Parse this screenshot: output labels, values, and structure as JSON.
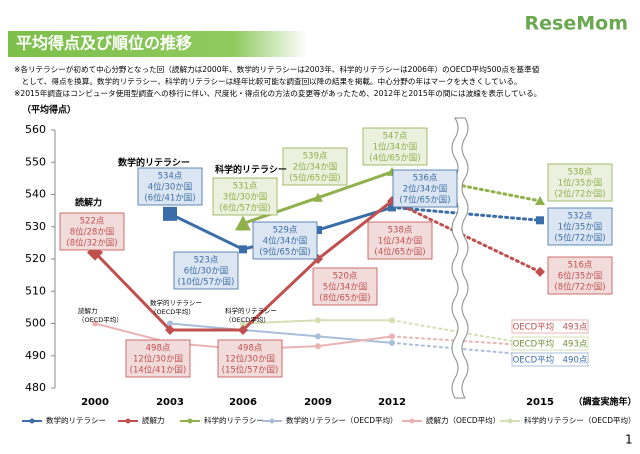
{
  "header": {
    "title": "平均得点及び順位の推移",
    "logo": "ReseMom",
    "notes": [
      "※各リテラシーが初めて中心分野となった回（読解力は2000年、数学的リテラシーは2003年、科学的リテラシーは2006年）のOECD平均500点を基準値",
      "　として、得点を換算。数学的リテラシー、科学的リテラシーは経年比較可能な調査回以降の結果を掲載。中心分野の年はマークを大きくしている。",
      "※2015年調査はコンピュータ使用型調査への移行に伴い、尺度化・得点化の方法の変更等があったため、2012年と2015年の間には波線を表示している。"
    ]
  },
  "page_number": 1,
  "chart_data": {
    "type": "line",
    "y_label": "（平均得点）",
    "x_label": "（調査実施年）",
    "categories": [
      "2000",
      "2003",
      "2006",
      "2009",
      "2012",
      "2015"
    ],
    "ylim": [
      480,
      560
    ],
    "yticks": [
      480,
      490,
      500,
      510,
      520,
      530,
      540,
      550,
      560
    ],
    "series": [
      {
        "name": "数学的リテラシー",
        "color": "#3a6ea8",
        "marker": "square",
        "values": [
          null,
          534,
          523,
          529,
          536,
          532
        ],
        "value_labels": [
          null,
          "534点",
          "523点",
          "529点",
          "536点",
          "532点"
        ],
        "ranks": [
          null,
          [
            "4位/30か国",
            "(6位/41か国)"
          ],
          [
            "6位/30か国",
            "(10位/57か国)"
          ],
          [
            "4位/34か国",
            "(9位/65か国)"
          ],
          [
            "2位/34か国",
            "(7位/65か国)"
          ],
          [
            "1位/35か国",
            "(5位/72か国)"
          ]
        ]
      },
      {
        "name": "読解力",
        "color": "#c0504d",
        "marker": "diamond",
        "values": [
          522,
          498,
          498,
          520,
          538,
          516
        ],
        "value_labels": [
          "522点",
          "498点",
          "498点",
          "520点",
          "538点",
          "516点"
        ],
        "ranks": [
          [
            "8位/28か国",
            "(8位/32か国)"
          ],
          [
            "12位/30か国",
            "(14位/41か国)"
          ],
          [
            "12位/30か国",
            "(15位/57か国)"
          ],
          [
            "5位/34か国",
            "(8位/65か国)"
          ],
          [
            "1位/34か国",
            "(4位/65か国)"
          ],
          [
            "6位/35か国",
            "(8位/72か国)"
          ]
        ]
      },
      {
        "name": "科学的リテラシー",
        "color": "#8fb04a",
        "marker": "triangle",
        "values": [
          null,
          null,
          531,
          539,
          547,
          538
        ],
        "value_labels": [
          null,
          null,
          "531点",
          "539点",
          "547点",
          "538点"
        ],
        "ranks": [
          null,
          null,
          [
            "3位/30か国",
            "(6位/57か国)"
          ],
          [
            "2位/34か国",
            "(5位/65か国)"
          ],
          [
            "1位/34か国",
            "(4位/65か国)"
          ],
          [
            "1位/35か国",
            "(2位/72か国)"
          ]
        ]
      },
      {
        "name": "数学的リテラシー（OECD平均）",
        "color": "#a9bedb",
        "marker": "circle",
        "values": [
          null,
          500,
          498,
          496,
          494,
          490
        ],
        "value_labels": [
          null,
          null,
          null,
          null,
          null,
          "OECD平均　490点"
        ]
      },
      {
        "name": "読解力（OECD平均）",
        "color": "#eab3b2",
        "marker": "circle",
        "values": [
          500,
          494,
          492,
          493,
          496,
          493
        ],
        "value_labels": [
          null,
          null,
          null,
          null,
          null,
          "OECD平均　493点"
        ]
      },
      {
        "name": "科学的リテラシー（OECD平均）",
        "color": "#d3e0b3",
        "marker": "circle",
        "values": [
          null,
          null,
          500,
          501,
          501,
          493
        ],
        "value_labels": [
          null,
          null,
          null,
          null,
          null,
          "OECD平均　493点"
        ]
      }
    ],
    "annotations": [
      [
        "読解力"
      ],
      [
        "数学的リテラシー"
      ],
      [
        "科学的リテラシー"
      ],
      [
        "読解力",
        "（OECD平均）"
      ],
      [
        "数学的リテラシー",
        "（OECD平均）"
      ],
      [
        "科学的リテラシー",
        "（OECD平均）"
      ]
    ]
  }
}
